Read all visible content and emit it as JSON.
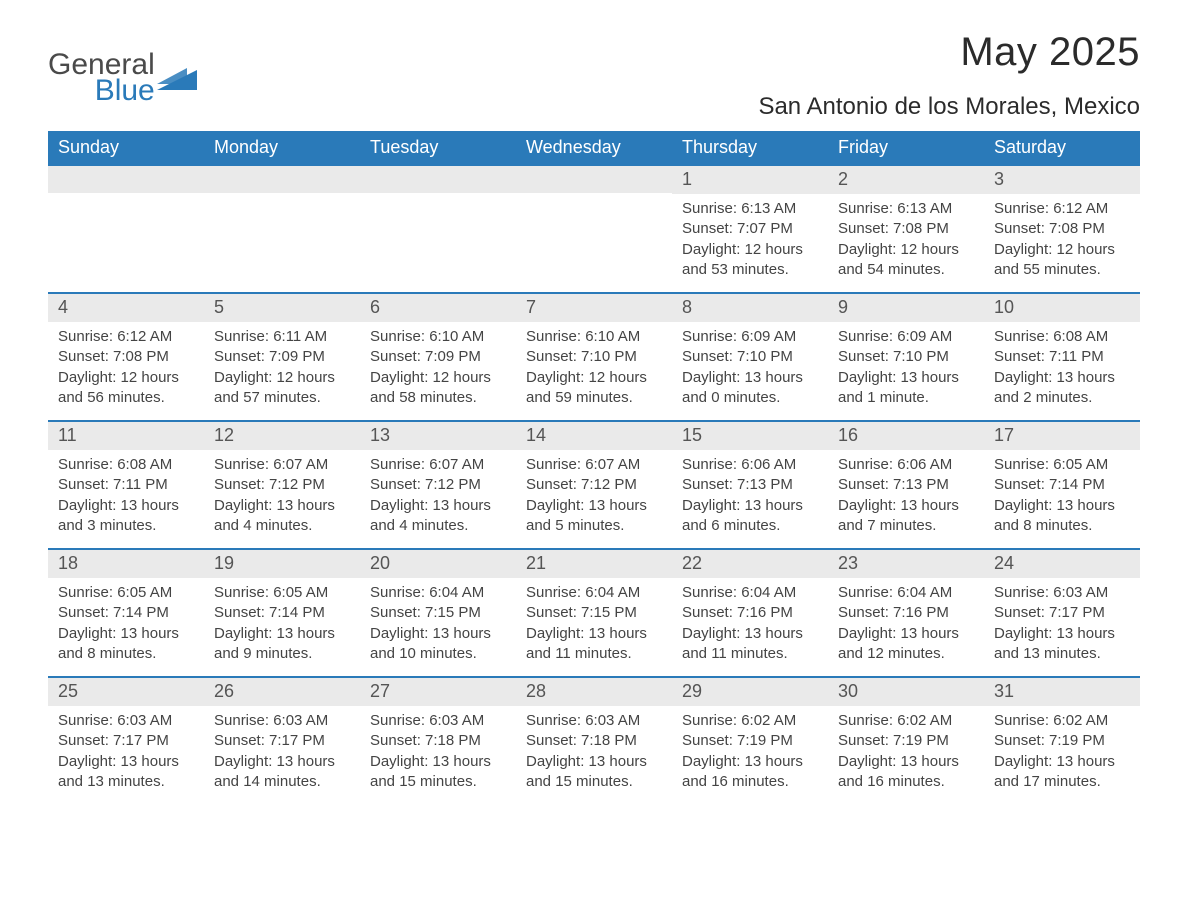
{
  "logo": {
    "text_top": "General",
    "text_bottom": "Blue",
    "icon_color": "#2a7ab9"
  },
  "title": {
    "month": "May 2025",
    "location": "San Antonio de los Morales, Mexico"
  },
  "colors": {
    "header_bg": "#2a7ab9",
    "header_text": "#ffffff",
    "daybar_bg": "#eaeaea",
    "text": "#444444",
    "week_divider": "#2a7ab9",
    "background": "#ffffff"
  },
  "weekdays": [
    "Sunday",
    "Monday",
    "Tuesday",
    "Wednesday",
    "Thursday",
    "Friday",
    "Saturday"
  ],
  "leading_blanks": 4,
  "days": [
    {
      "n": "1",
      "sunrise": "6:13 AM",
      "sunset": "7:07 PM",
      "daylight": "12 hours and 53 minutes."
    },
    {
      "n": "2",
      "sunrise": "6:13 AM",
      "sunset": "7:08 PM",
      "daylight": "12 hours and 54 minutes."
    },
    {
      "n": "3",
      "sunrise": "6:12 AM",
      "sunset": "7:08 PM",
      "daylight": "12 hours and 55 minutes."
    },
    {
      "n": "4",
      "sunrise": "6:12 AM",
      "sunset": "7:08 PM",
      "daylight": "12 hours and 56 minutes."
    },
    {
      "n": "5",
      "sunrise": "6:11 AM",
      "sunset": "7:09 PM",
      "daylight": "12 hours and 57 minutes."
    },
    {
      "n": "6",
      "sunrise": "6:10 AM",
      "sunset": "7:09 PM",
      "daylight": "12 hours and 58 minutes."
    },
    {
      "n": "7",
      "sunrise": "6:10 AM",
      "sunset": "7:10 PM",
      "daylight": "12 hours and 59 minutes."
    },
    {
      "n": "8",
      "sunrise": "6:09 AM",
      "sunset": "7:10 PM",
      "daylight": "13 hours and 0 minutes."
    },
    {
      "n": "9",
      "sunrise": "6:09 AM",
      "sunset": "7:10 PM",
      "daylight": "13 hours and 1 minute."
    },
    {
      "n": "10",
      "sunrise": "6:08 AM",
      "sunset": "7:11 PM",
      "daylight": "13 hours and 2 minutes."
    },
    {
      "n": "11",
      "sunrise": "6:08 AM",
      "sunset": "7:11 PM",
      "daylight": "13 hours and 3 minutes."
    },
    {
      "n": "12",
      "sunrise": "6:07 AM",
      "sunset": "7:12 PM",
      "daylight": "13 hours and 4 minutes."
    },
    {
      "n": "13",
      "sunrise": "6:07 AM",
      "sunset": "7:12 PM",
      "daylight": "13 hours and 4 minutes."
    },
    {
      "n": "14",
      "sunrise": "6:07 AM",
      "sunset": "7:12 PM",
      "daylight": "13 hours and 5 minutes."
    },
    {
      "n": "15",
      "sunrise": "6:06 AM",
      "sunset": "7:13 PM",
      "daylight": "13 hours and 6 minutes."
    },
    {
      "n": "16",
      "sunrise": "6:06 AM",
      "sunset": "7:13 PM",
      "daylight": "13 hours and 7 minutes."
    },
    {
      "n": "17",
      "sunrise": "6:05 AM",
      "sunset": "7:14 PM",
      "daylight": "13 hours and 8 minutes."
    },
    {
      "n": "18",
      "sunrise": "6:05 AM",
      "sunset": "7:14 PM",
      "daylight": "13 hours and 8 minutes."
    },
    {
      "n": "19",
      "sunrise": "6:05 AM",
      "sunset": "7:14 PM",
      "daylight": "13 hours and 9 minutes."
    },
    {
      "n": "20",
      "sunrise": "6:04 AM",
      "sunset": "7:15 PM",
      "daylight": "13 hours and 10 minutes."
    },
    {
      "n": "21",
      "sunrise": "6:04 AM",
      "sunset": "7:15 PM",
      "daylight": "13 hours and 11 minutes."
    },
    {
      "n": "22",
      "sunrise": "6:04 AM",
      "sunset": "7:16 PM",
      "daylight": "13 hours and 11 minutes."
    },
    {
      "n": "23",
      "sunrise": "6:04 AM",
      "sunset": "7:16 PM",
      "daylight": "13 hours and 12 minutes."
    },
    {
      "n": "24",
      "sunrise": "6:03 AM",
      "sunset": "7:17 PM",
      "daylight": "13 hours and 13 minutes."
    },
    {
      "n": "25",
      "sunrise": "6:03 AM",
      "sunset": "7:17 PM",
      "daylight": "13 hours and 13 minutes."
    },
    {
      "n": "26",
      "sunrise": "6:03 AM",
      "sunset": "7:17 PM",
      "daylight": "13 hours and 14 minutes."
    },
    {
      "n": "27",
      "sunrise": "6:03 AM",
      "sunset": "7:18 PM",
      "daylight": "13 hours and 15 minutes."
    },
    {
      "n": "28",
      "sunrise": "6:03 AM",
      "sunset": "7:18 PM",
      "daylight": "13 hours and 15 minutes."
    },
    {
      "n": "29",
      "sunrise": "6:02 AM",
      "sunset": "7:19 PM",
      "daylight": "13 hours and 16 minutes."
    },
    {
      "n": "30",
      "sunrise": "6:02 AM",
      "sunset": "7:19 PM",
      "daylight": "13 hours and 16 minutes."
    },
    {
      "n": "31",
      "sunrise": "6:02 AM",
      "sunset": "7:19 PM",
      "daylight": "13 hours and 17 minutes."
    }
  ],
  "labels": {
    "sunrise": "Sunrise: ",
    "sunset": "Sunset: ",
    "daylight": "Daylight: "
  }
}
